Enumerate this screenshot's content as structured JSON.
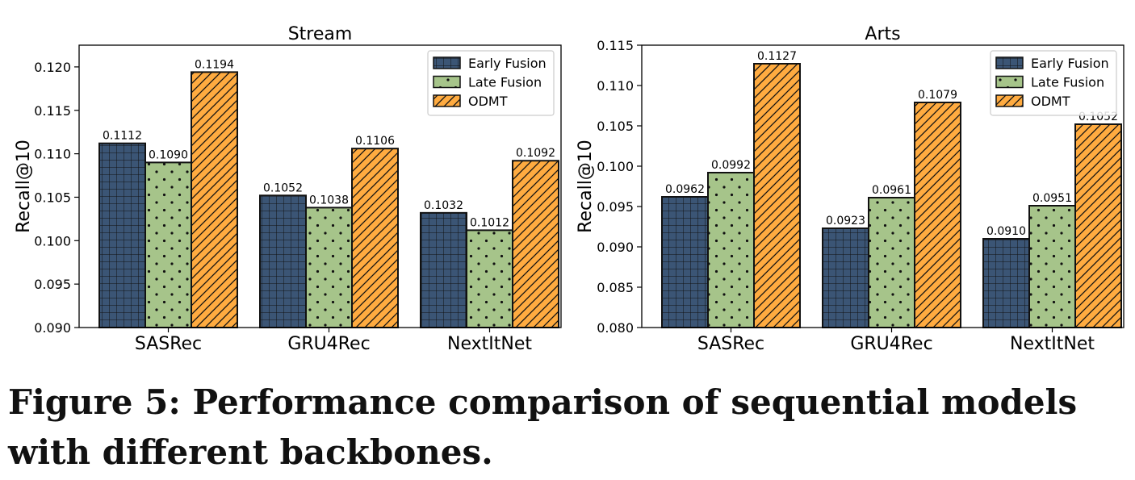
{
  "figure": {
    "caption": "Figure 5: Performance comparison of sequential models with different backbones."
  },
  "colors": {
    "early_fusion": "#3b5575",
    "late_fusion": "#a6c48a",
    "odmt": "#ffab40",
    "edge": "#111111"
  },
  "chart_data": [
    {
      "type": "bar",
      "title": "Stream",
      "ylabel": "Recall@10",
      "xlabel": "",
      "categories": [
        "SASRec",
        "GRU4Rec",
        "NextItNet"
      ],
      "ylim": [
        0.09,
        0.1225
      ],
      "yticks": [
        "0.090",
        "0.095",
        "0.100",
        "0.105",
        "0.110",
        "0.115",
        "0.120"
      ],
      "legend_position": "top-right",
      "series": [
        {
          "name": "Early Fusion",
          "pattern": "grid",
          "values": [
            0.1112,
            0.1052,
            0.1032
          ],
          "labels": [
            "0.1112",
            "0.1052",
            "0.1032"
          ]
        },
        {
          "name": "Late Fusion",
          "pattern": "dots",
          "values": [
            0.109,
            0.1038,
            0.1012
          ],
          "labels": [
            "0.1090",
            "0.1038",
            "0.1012"
          ]
        },
        {
          "name": "ODMT",
          "pattern": "hatch",
          "values": [
            0.1194,
            0.1106,
            0.1092
          ],
          "labels": [
            "0.1194",
            "0.1106",
            "0.1092"
          ]
        }
      ]
    },
    {
      "type": "bar",
      "title": "Arts",
      "ylabel": "Recall@10",
      "xlabel": "",
      "categories": [
        "SASRec",
        "GRU4Rec",
        "NextItNet"
      ],
      "ylim": [
        0.08,
        0.115
      ],
      "yticks": [
        "0.080",
        "0.085",
        "0.090",
        "0.095",
        "0.100",
        "0.105",
        "0.110",
        "0.115"
      ],
      "legend_position": "top-right",
      "series": [
        {
          "name": "Early Fusion",
          "pattern": "grid",
          "values": [
            0.0962,
            0.0923,
            0.091
          ],
          "labels": [
            "0.0962",
            "0.0923",
            "0.0910"
          ]
        },
        {
          "name": "Late Fusion",
          "pattern": "dots",
          "values": [
            0.0992,
            0.0961,
            0.0951
          ],
          "labels": [
            "0.0992",
            "0.0961",
            "0.0951"
          ]
        },
        {
          "name": "ODMT",
          "pattern": "hatch",
          "values": [
            0.1127,
            0.1079,
            0.1052
          ],
          "labels": [
            "0.1127",
            "0.1079",
            "0.1052"
          ]
        }
      ]
    }
  ]
}
